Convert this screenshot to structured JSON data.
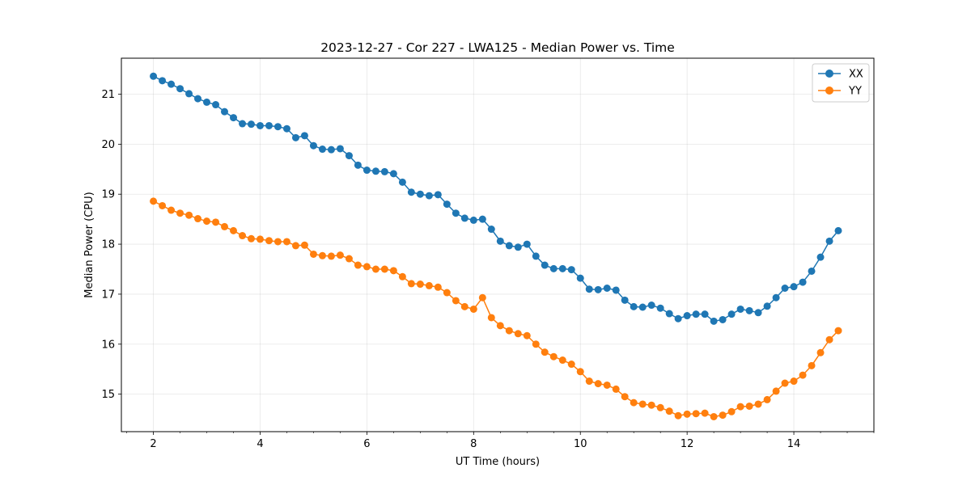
{
  "chart_data": {
    "type": "line",
    "title": "2023-12-27 - Cor 227 - LWA125 - Median Power vs. Time",
    "xlabel": "UT Time (hours)",
    "ylabel": "Median Power (CPU)",
    "xlim": [
      1.4,
      15.5
    ],
    "ylim": [
      14.25,
      21.72
    ],
    "xticks": [
      2,
      4,
      6,
      8,
      10,
      12,
      14
    ],
    "xtick_labels": [
      "2",
      "4",
      "6",
      "8",
      "10",
      "12",
      "14"
    ],
    "yticks": [
      15,
      16,
      17,
      18,
      19,
      20,
      21
    ],
    "ytick_labels": [
      "15",
      "16",
      "17",
      "18",
      "19",
      "20",
      "21"
    ],
    "grid": true,
    "legend": "top-right",
    "x": [
      2.0,
      2.167,
      2.333,
      2.5,
      2.667,
      2.833,
      3.0,
      3.167,
      3.333,
      3.5,
      3.667,
      3.833,
      4.0,
      4.167,
      4.333,
      4.5,
      4.667,
      4.833,
      5.0,
      5.167,
      5.333,
      5.5,
      5.667,
      5.833,
      6.0,
      6.167,
      6.333,
      6.5,
      6.667,
      6.833,
      7.0,
      7.167,
      7.333,
      7.5,
      7.667,
      7.833,
      8.0,
      8.167,
      8.333,
      8.5,
      8.667,
      8.833,
      9.0,
      9.167,
      9.333,
      9.5,
      9.667,
      9.833,
      10.0,
      10.167,
      10.333,
      10.5,
      10.667,
      10.833,
      11.0,
      11.167,
      11.333,
      11.5,
      11.667,
      11.833,
      12.0,
      12.167,
      12.333,
      12.5,
      12.667,
      12.833,
      13.0,
      13.167,
      13.333,
      13.5,
      13.667,
      13.833,
      14.0,
      14.167,
      14.333,
      14.5,
      14.667,
      14.833
    ],
    "series": [
      {
        "name": "XX",
        "color": "#1f77b4",
        "values": [
          21.36,
          21.27,
          21.2,
          21.11,
          21.01,
          20.91,
          20.84,
          20.79,
          20.65,
          20.53,
          20.41,
          20.4,
          20.37,
          20.37,
          20.35,
          20.31,
          20.13,
          20.17,
          19.97,
          19.9,
          19.89,
          19.91,
          19.77,
          19.58,
          19.48,
          19.46,
          19.45,
          19.41,
          19.24,
          19.04,
          19.0,
          18.97,
          18.99,
          18.8,
          18.62,
          18.52,
          18.48,
          18.5,
          18.3,
          18.06,
          17.97,
          17.94,
          18.0,
          17.76,
          17.58,
          17.51,
          17.51,
          17.49,
          17.32,
          17.1,
          17.09,
          17.12,
          17.08,
          16.88,
          16.75,
          16.74,
          16.78,
          16.72,
          16.61,
          16.51,
          16.57,
          16.6,
          16.6,
          16.46,
          16.49,
          16.6,
          16.7,
          16.67,
          16.63,
          16.76,
          16.93,
          17.12,
          17.15,
          17.24,
          17.46,
          17.74,
          18.06,
          18.27
        ]
      },
      {
        "name": "YY",
        "color": "#ff7f0e",
        "values": [
          18.86,
          18.77,
          18.68,
          18.62,
          18.58,
          18.51,
          18.46,
          18.44,
          18.35,
          18.27,
          18.17,
          18.11,
          18.1,
          18.07,
          18.05,
          18.05,
          17.97,
          17.98,
          17.8,
          17.77,
          17.76,
          17.78,
          17.71,
          17.58,
          17.55,
          17.5,
          17.5,
          17.47,
          17.35,
          17.21,
          17.2,
          17.17,
          17.14,
          17.03,
          16.87,
          16.75,
          16.7,
          16.93,
          16.53,
          16.37,
          16.27,
          16.21,
          16.17,
          16.0,
          15.84,
          15.75,
          15.68,
          15.6,
          15.45,
          15.26,
          15.21,
          15.18,
          15.1,
          14.95,
          14.83,
          14.8,
          14.78,
          14.73,
          14.66,
          14.57,
          14.6,
          14.61,
          14.62,
          14.55,
          14.58,
          14.65,
          14.75,
          14.76,
          14.8,
          14.89,
          15.06,
          15.22,
          15.26,
          15.38,
          15.57,
          15.83,
          16.09,
          16.27
        ]
      }
    ]
  }
}
